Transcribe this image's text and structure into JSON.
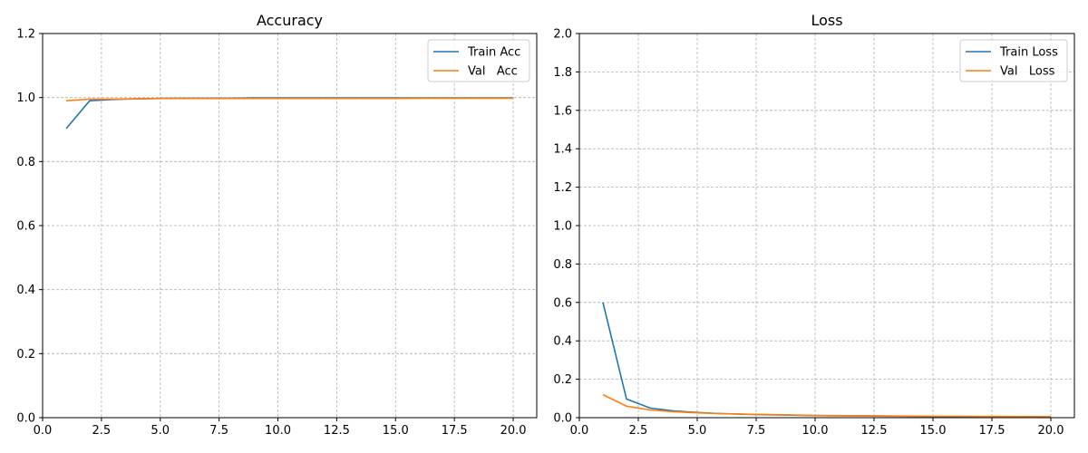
{
  "chart_data": [
    {
      "type": "line",
      "title": "Accuracy",
      "xlabel": "",
      "ylabel": "",
      "xlim": [
        0,
        21
      ],
      "ylim": [
        0,
        1.2
      ],
      "xticks": [
        0.0,
        2.5,
        5.0,
        7.5,
        10.0,
        12.5,
        15.0,
        17.5,
        20.0
      ],
      "xtick_labels": [
        "0.0",
        "2.5",
        "5.0",
        "7.5",
        "10.0",
        "12.5",
        "15.0",
        "17.5",
        "20.0"
      ],
      "yticks": [
        0.0,
        0.2,
        0.4,
        0.6,
        0.8,
        1.0,
        1.2
      ],
      "ytick_labels": [
        "0.0",
        "0.2",
        "0.4",
        "0.6",
        "0.8",
        "1.0",
        "1.2"
      ],
      "grid": true,
      "legend_position": "top-right",
      "x": [
        1,
        2,
        3,
        4,
        5,
        6,
        7,
        8,
        9,
        10,
        11,
        12,
        13,
        14,
        15,
        16,
        17,
        18,
        19,
        20
      ],
      "series": [
        {
          "name": "Train Acc",
          "color": "#1f77b4",
          "values": [
            0.903,
            0.99,
            0.994,
            0.996,
            0.997,
            0.998,
            0.998,
            0.998,
            0.999,
            0.999,
            0.999,
            0.999,
            0.999,
            0.999,
            0.999,
            0.999,
            0.999,
            0.999,
            0.999,
            0.999
          ]
        },
        {
          "name": "Val   Acc",
          "color": "#ff7f0e",
          "values": [
            0.99,
            0.995,
            0.995,
            0.996,
            0.997,
            0.997,
            0.997,
            0.997,
            0.997,
            0.997,
            0.997,
            0.997,
            0.997,
            0.997,
            0.997,
            0.998,
            0.998,
            0.998,
            0.998,
            0.998
          ]
        }
      ]
    },
    {
      "type": "line",
      "title": "Loss",
      "xlabel": "",
      "ylabel": "",
      "xlim": [
        0,
        21
      ],
      "ylim": [
        0,
        2.0
      ],
      "xticks": [
        0.0,
        2.5,
        5.0,
        7.5,
        10.0,
        12.5,
        15.0,
        17.5,
        20.0
      ],
      "xtick_labels": [
        "0.0",
        "2.5",
        "5.0",
        "7.5",
        "10.0",
        "12.5",
        "15.0",
        "17.5",
        "20.0"
      ],
      "yticks": [
        0.0,
        0.2,
        0.4,
        0.6,
        0.8,
        1.0,
        1.2,
        1.4,
        1.6,
        1.8,
        2.0
      ],
      "ytick_labels": [
        "0.0",
        "0.2",
        "0.4",
        "0.6",
        "0.8",
        "1.0",
        "1.2",
        "1.4",
        "1.6",
        "1.8",
        "2.0"
      ],
      "grid": true,
      "legend_position": "top-right",
      "x": [
        1,
        2,
        3,
        4,
        5,
        6,
        7,
        8,
        9,
        10,
        11,
        12,
        13,
        14,
        15,
        16,
        17,
        18,
        19,
        20
      ],
      "series": [
        {
          "name": "Train Loss",
          "color": "#1f77b4",
          "values": [
            0.6,
            0.097,
            0.05,
            0.035,
            0.027,
            0.021,
            0.018,
            0.015,
            0.013,
            0.011,
            0.01,
            0.009,
            0.008,
            0.007,
            0.006,
            0.006,
            0.005,
            0.005,
            0.005,
            0.004
          ]
        },
        {
          "name": "Val   Loss",
          "color": "#ff7f0e",
          "values": [
            0.12,
            0.06,
            0.04,
            0.031,
            0.025,
            0.021,
            0.018,
            0.016,
            0.014,
            0.012,
            0.011,
            0.01,
            0.009,
            0.008,
            0.007,
            0.007,
            0.006,
            0.006,
            0.005,
            0.005
          ]
        }
      ]
    }
  ]
}
